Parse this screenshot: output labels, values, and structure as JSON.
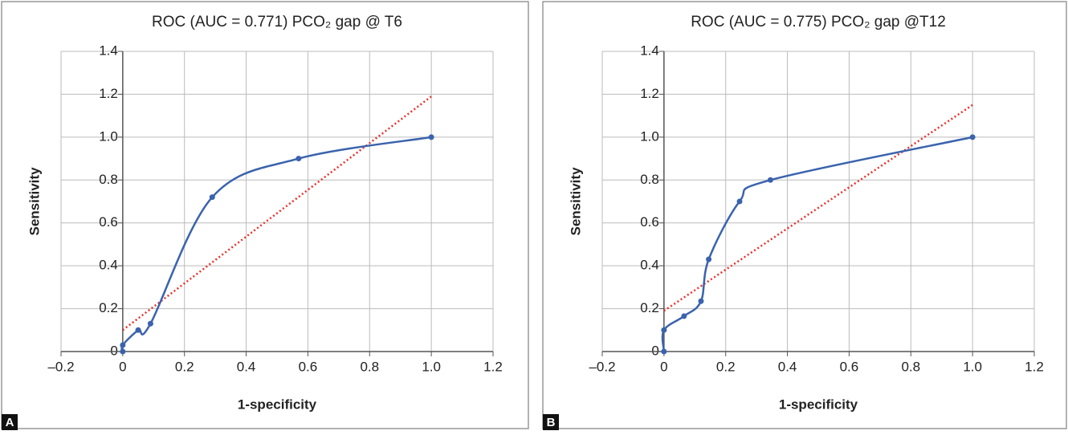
{
  "chart_data": [
    {
      "type": "line",
      "panel_label": "A",
      "title": "ROC (AUC = 0.771) PCO₂ gap @ T6",
      "x_label": "1-specificity",
      "y_label": "Sensitivity",
      "x": [
        0,
        0,
        0.05,
        0.09,
        0.29,
        0.57,
        1.0
      ],
      "values": [
        0,
        0.03,
        0.1,
        0.13,
        0.72,
        0.9,
        1.0
      ],
      "color": "#3a63ad",
      "trendline": {
        "x": [
          0,
          1.0
        ],
        "y": [
          0.1,
          1.19
        ],
        "color": "#e8302a"
      },
      "xlim": [
        -0.2,
        1.2
      ],
      "ylim": [
        0,
        1.4
      ],
      "xticks": [
        {
          "value": -0.2,
          "label": "–0.2"
        },
        0,
        0.2,
        0.4,
        0.6,
        0.8,
        {
          "value": 1,
          "label": "1.0"
        },
        1.2
      ],
      "yticks": [
        0,
        0.2,
        0.4,
        0.6,
        0.8,
        {
          "value": 1,
          "label": "1.0"
        },
        1.2,
        1.4
      ],
      "grid": true
    },
    {
      "type": "line",
      "panel_label": "B",
      "title": "ROC (AUC = 0.775) PCO₂ gap @T12",
      "x_label": "1-specificity",
      "y_label": "Sensitivity",
      "x": [
        0,
        0,
        0.065,
        0.12,
        0.145,
        0.245,
        0.345,
        1.0
      ],
      "values": [
        0,
        0.1,
        0.165,
        0.235,
        0.43,
        0.7,
        0.8,
        1.0
      ],
      "color": "#3a63ad",
      "trendline": {
        "x": [
          0,
          1.0
        ],
        "y": [
          0.19,
          1.15
        ],
        "color": "#e8302a"
      },
      "xlim": [
        -0.2,
        1.2
      ],
      "ylim": [
        0,
        1.4
      ],
      "xticks": [
        {
          "value": -0.2,
          "label": "–0.2"
        },
        0,
        0.2,
        0.4,
        0.6,
        0.8,
        {
          "value": 1,
          "label": "1.0"
        },
        1.2
      ],
      "yticks": [
        0,
        0.2,
        0.4,
        0.6,
        0.8,
        {
          "value": 1,
          "label": "1.0"
        },
        1.2,
        1.4
      ],
      "grid": true
    }
  ]
}
